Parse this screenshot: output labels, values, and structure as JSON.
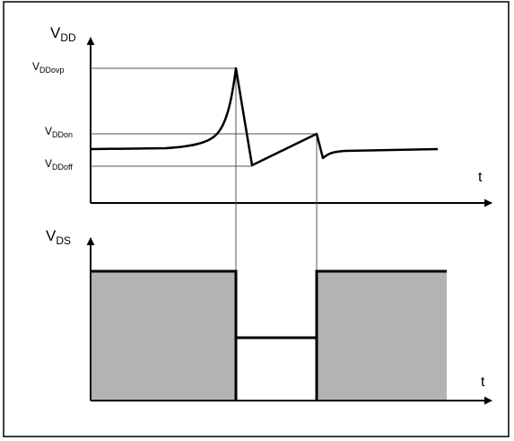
{
  "top_plot": {
    "y_axis": {
      "main": "V",
      "sub": "DD"
    },
    "levels": [
      {
        "key": "ovp",
        "main": "V",
        "sub": "DDovp"
      },
      {
        "key": "on",
        "main": "V",
        "sub": "DDon"
      },
      {
        "key": "off",
        "main": "V",
        "sub": "DDoff"
      }
    ],
    "x_axis": "t"
  },
  "bottom_plot": {
    "y_axis": {
      "main": "V",
      "sub": "DS"
    },
    "x_axis": "t"
  },
  "colors": {
    "line": "#000000",
    "guide": "#555555",
    "fill": "#b3b3b3",
    "frame": "#000000",
    "background": "#ffffff"
  }
}
